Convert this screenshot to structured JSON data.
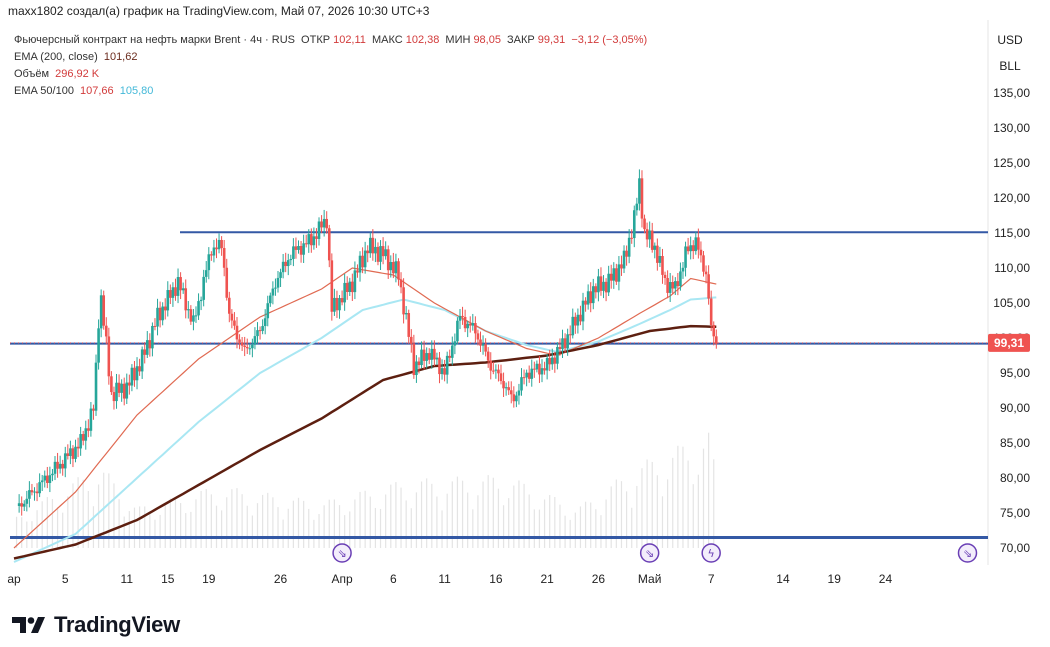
{
  "header": {
    "text": "maxx1802 создал(а) график на TradingView.com, Май 07, 2026 10:30 UTC+3"
  },
  "legend": {
    "symbol_title": "Фьючерсный контракт на нефть марки Brent · 4ч · RUS",
    "open_label": "ОТКР",
    "open_value": "102,11",
    "high_label": "МАКС",
    "high_value": "102,38",
    "low_label": "МИН",
    "low_value": "98,05",
    "close_label": "ЗАКР",
    "close_value": "99,31",
    "change_value": "−3,12 (−3,05%)",
    "ema200_label": "EMA (200, close)",
    "ema200_value": "101,62",
    "volume_label": "Объём",
    "volume_value": "296,92 K",
    "ema50100_label": "EMA 50/100",
    "ema50_value": "107,66",
    "ema100_value": "105,80"
  },
  "price_axis": {
    "currency": "USD",
    "unit": "BLL",
    "last_price_tag": "99,31"
  },
  "brand": {
    "name": "TradingView"
  },
  "colors": {
    "up": "#26a69a",
    "down": "#ef5350",
    "ema200": "#5d1f10",
    "ema50": "#e06a52",
    "ema100": "#a9e7f3",
    "level_line": "#3459a5",
    "price_tag": "#ef5350"
  },
  "chart_data": {
    "type": "candlestick",
    "timeframe": "4h",
    "y_axis": {
      "ticks": [
        "135,00",
        "130,00",
        "125,00",
        "120,00",
        "115,00",
        "110,00",
        "105,00",
        "100,00",
        "95,00",
        "90,00",
        "85,00",
        "80,00",
        "75,00",
        "70,00"
      ],
      "range": [
        67.5,
        140
      ]
    },
    "x_axis": {
      "ticks": [
        "ар",
        "5",
        "11",
        "15",
        "19",
        "26",
        "Апр",
        "6",
        "11",
        "16",
        "21",
        "26",
        "Май",
        "7",
        "14",
        "19",
        "24"
      ],
      "tick_days": [
        0,
        5,
        11,
        15,
        19,
        26,
        32,
        37,
        42,
        47,
        52,
        57,
        62,
        68,
        75,
        80,
        85
      ],
      "day_range": [
        0,
        95
      ]
    },
    "horizontal_levels": [
      115.1,
      99.2,
      71.5
    ],
    "last_price": 99.31,
    "ohlc_keypoints": [
      [
        0.5,
        76
      ],
      [
        2.5,
        79
      ],
      [
        4.5,
        82
      ],
      [
        6.5,
        85
      ],
      [
        7.8,
        90
      ],
      [
        8.4,
        107
      ],
      [
        9.5,
        92
      ],
      [
        11,
        93
      ],
      [
        12.5,
        97
      ],
      [
        14,
        103
      ],
      [
        16,
        108
      ],
      [
        17.5,
        102
      ],
      [
        19.3,
        113
      ],
      [
        20.3,
        113
      ],
      [
        21,
        103
      ],
      [
        22.5,
        98
      ],
      [
        24,
        101
      ],
      [
        25.5,
        108
      ],
      [
        27,
        112
      ],
      [
        29,
        114
      ],
      [
        30.5,
        117
      ],
      [
        31,
        104
      ],
      [
        33,
        108
      ],
      [
        34.5,
        113
      ],
      [
        36,
        112
      ],
      [
        37.5,
        109
      ],
      [
        38.2,
        103
      ],
      [
        39,
        96
      ],
      [
        40.5,
        98
      ],
      [
        42,
        95
      ],
      [
        43.5,
        103
      ],
      [
        45,
        101
      ],
      [
        46.5,
        96
      ],
      [
        48,
        93
      ],
      [
        48.6,
        91
      ],
      [
        50,
        95
      ],
      [
        52,
        96
      ],
      [
        53.5,
        99
      ],
      [
        55,
        103
      ],
      [
        56.5,
        107
      ],
      [
        58,
        108
      ],
      [
        59.5,
        111
      ],
      [
        60.5,
        117
      ],
      [
        61,
        122
      ],
      [
        61.5,
        115
      ],
      [
        62.5,
        113
      ],
      [
        63.5,
        108
      ],
      [
        64.5,
        107
      ],
      [
        65.5,
        112
      ],
      [
        66.5,
        114
      ],
      [
        67,
        111
      ],
      [
        67.6,
        109
      ],
      [
        68,
        101
      ],
      [
        68.5,
        99.3
      ]
    ],
    "ema200_keypoints": [
      [
        0,
        68.5
      ],
      [
        6,
        70.5
      ],
      [
        12,
        74
      ],
      [
        18,
        79
      ],
      [
        24,
        84
      ],
      [
        30,
        88.5
      ],
      [
        36,
        94
      ],
      [
        41,
        96
      ],
      [
        46,
        96.5
      ],
      [
        52,
        97.5
      ],
      [
        57,
        99
      ],
      [
        62,
        101
      ],
      [
        66,
        101.7
      ],
      [
        68.5,
        101.6
      ]
    ],
    "ema50_keypoints": [
      [
        0,
        70
      ],
      [
        6,
        78
      ],
      [
        12,
        89
      ],
      [
        18,
        97
      ],
      [
        24,
        103
      ],
      [
        30,
        107
      ],
      [
        33,
        110
      ],
      [
        37,
        109
      ],
      [
        41,
        105
      ],
      [
        46,
        101
      ],
      [
        50,
        98.5
      ],
      [
        53,
        97.5
      ],
      [
        57,
        100
      ],
      [
        61,
        103.5
      ],
      [
        64,
        106
      ],
      [
        66,
        108.5
      ],
      [
        68.5,
        107.7
      ]
    ],
    "ema100_keypoints": [
      [
        0,
        68
      ],
      [
        6,
        72
      ],
      [
        12,
        80
      ],
      [
        18,
        88
      ],
      [
        24,
        95
      ],
      [
        30,
        100
      ],
      [
        34,
        104
      ],
      [
        38,
        105.5
      ],
      [
        42,
        104
      ],
      [
        46,
        101
      ],
      [
        50,
        99
      ],
      [
        53,
        98
      ],
      [
        57,
        99.5
      ],
      [
        61,
        102
      ],
      [
        64,
        104
      ],
      [
        66,
        105.5
      ],
      [
        68.5,
        105.8
      ]
    ],
    "volume_keypoints": [
      [
        0,
        0.2
      ],
      [
        8.4,
        0.7
      ],
      [
        12,
        0.3
      ],
      [
        20,
        0.5
      ],
      [
        30,
        0.35
      ],
      [
        38,
        0.55
      ],
      [
        48,
        0.6
      ],
      [
        55,
        0.3
      ],
      [
        61,
        0.7
      ],
      [
        68,
        1.0
      ],
      [
        68.6,
        0.4
      ]
    ],
    "event_markers": [
      {
        "day": 32,
        "symbol": "⇘"
      },
      {
        "day": 62,
        "symbol": "⇘"
      },
      {
        "day": 68,
        "symbol": "ϟ"
      },
      {
        "day": 93,
        "symbol": "⇘"
      }
    ]
  }
}
